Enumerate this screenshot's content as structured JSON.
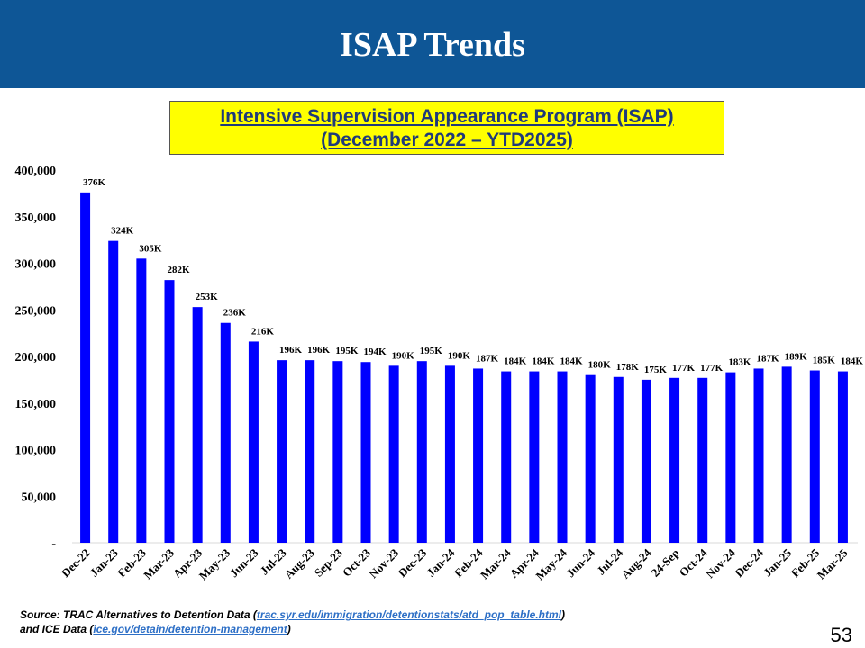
{
  "header": {
    "title": "ISAP Trends"
  },
  "subtitle": {
    "line1": "Intensive Supervision Appearance Program (ISAP)",
    "line2": "(December 2022 – YTD2025)"
  },
  "colors": {
    "header_bg": "#0e5696",
    "bar": "#0000ff",
    "subtitle_bg": "#ffff00"
  },
  "chart_data": {
    "type": "bar",
    "title": "Intensive Supervision Appearance Program (ISAP) (December 2022 – YTD2025)",
    "xlabel": "",
    "ylabel": "",
    "ylim": [
      0,
      400000
    ],
    "yticks": [
      0,
      50000,
      100000,
      150000,
      200000,
      250000,
      300000,
      350000,
      400000
    ],
    "ytick_labels": [
      "-",
      "50,000",
      "100,000",
      "150,000",
      "200,000",
      "250,000",
      "300,000",
      "350,000",
      "400,000"
    ],
    "categories": [
      "Dec-22",
      "Jan-23",
      "Feb-23",
      "Mar-23",
      "Apr-23",
      "May-23",
      "Jun-23",
      "Jul-23",
      "Aug-23",
      "Sep-23",
      "Oct-23",
      "Nov-23",
      "Dec-23",
      "Jan-24",
      "Feb-24",
      "Mar-24",
      "Apr-24",
      "May-24",
      "Jun-24",
      "Jul-24",
      "Aug-24",
      "24-Sep",
      "Oct-24",
      "Nov-24",
      "Dec-24",
      "Jan-25",
      "Feb-25",
      "Mar-25"
    ],
    "values": [
      376000,
      324000,
      305000,
      282000,
      253000,
      236000,
      216000,
      196000,
      196000,
      195000,
      194000,
      190000,
      195000,
      190000,
      187000,
      184000,
      184000,
      184000,
      180000,
      178000,
      175000,
      177000,
      177000,
      183000,
      187000,
      189000,
      185000,
      184000
    ],
    "data_labels": [
      "376K",
      "324K",
      "305K",
      "282K",
      "253K",
      "236K",
      "216K",
      "196K",
      "196K",
      "195K",
      "194K",
      "190K",
      "195K",
      "190K",
      "187K",
      "184K",
      "184K",
      "184K",
      "180K",
      "178K",
      "175K",
      "177K",
      "177K",
      "183K",
      "187K",
      "189K",
      "185K",
      "184K"
    ],
    "grid": false,
    "legend": "none"
  },
  "source": {
    "prefix": "Source: TRAC Alternatives to Detention Data (",
    "link1": "trac.syr.edu/immigration/detentionstats/atd_pop_table.html",
    "middle": ")",
    "line2_prefix": "and ICE Data (",
    "link2": "ice.gov/detain/detention-management",
    "suffix": ")"
  },
  "page_number": "53"
}
